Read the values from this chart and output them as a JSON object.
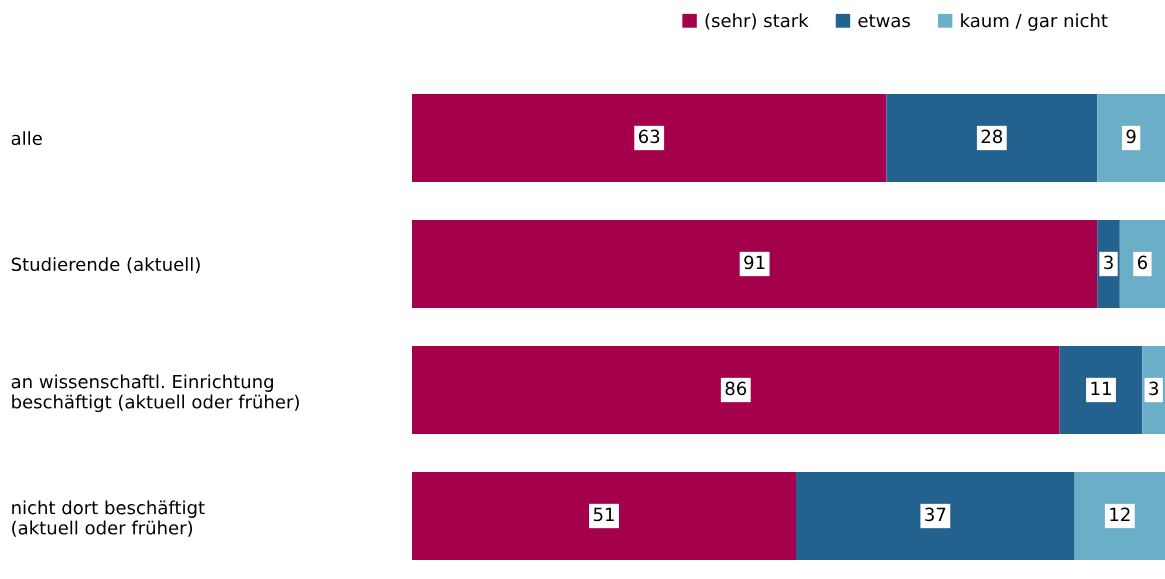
{
  "chart_data": {
    "type": "bar",
    "orientation": "horizontal",
    "stacked": true,
    "data_labels": true,
    "legend": "top right",
    "grid": false,
    "categories": [
      "alle",
      "Studierende (aktuell)",
      "an wissenschaftl. Einrichtung\nbeschäftigt (aktuell oder früher)",
      "nicht dort beschäftigt\n(aktuell oder früher)"
    ],
    "series": [
      {
        "name": "(sehr) stark",
        "color": "#a5004b",
        "values": [
          63,
          91,
          86,
          51
        ]
      },
      {
        "name": "etwas",
        "color": "#23618f",
        "values": [
          28,
          3,
          11,
          37
        ]
      },
      {
        "name": "kaum / gar nicht",
        "color": "#6aaec8",
        "values": [
          9,
          6,
          3,
          12
        ]
      }
    ]
  }
}
